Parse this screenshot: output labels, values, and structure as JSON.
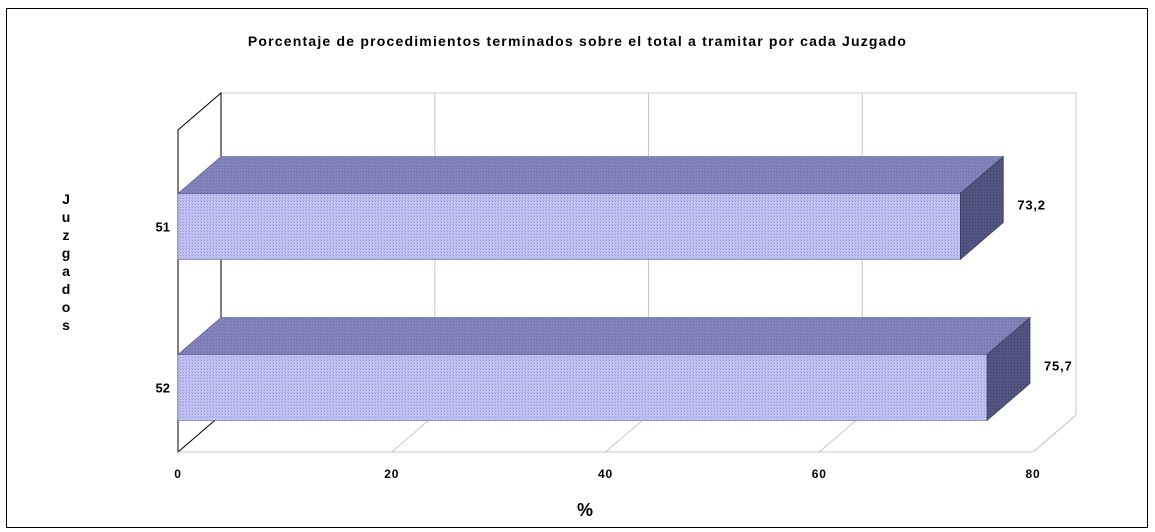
{
  "chart_data": {
    "type": "bar",
    "orientation": "horizontal",
    "title": "Porcentaje de procedimientos terminados sobre el total a tramitar por cada Juzgado",
    "xlabel": "%",
    "ylabel": "Juzgados",
    "categories": [
      "51",
      "52"
    ],
    "values": [
      73.2,
      75.7
    ],
    "value_labels": [
      "73,2",
      "75,7"
    ],
    "xlim": [
      0,
      80
    ],
    "xticks": [
      "0",
      "20",
      "40",
      "60",
      "80"
    ],
    "grid": "vertical",
    "three_d": true,
    "colors": {
      "bar_front": "#b6b6ec",
      "bar_top": "#7c7cb4",
      "bar_side": "#4e4e78",
      "gridline": "#c8c8c8",
      "axis": "#000000"
    }
  }
}
